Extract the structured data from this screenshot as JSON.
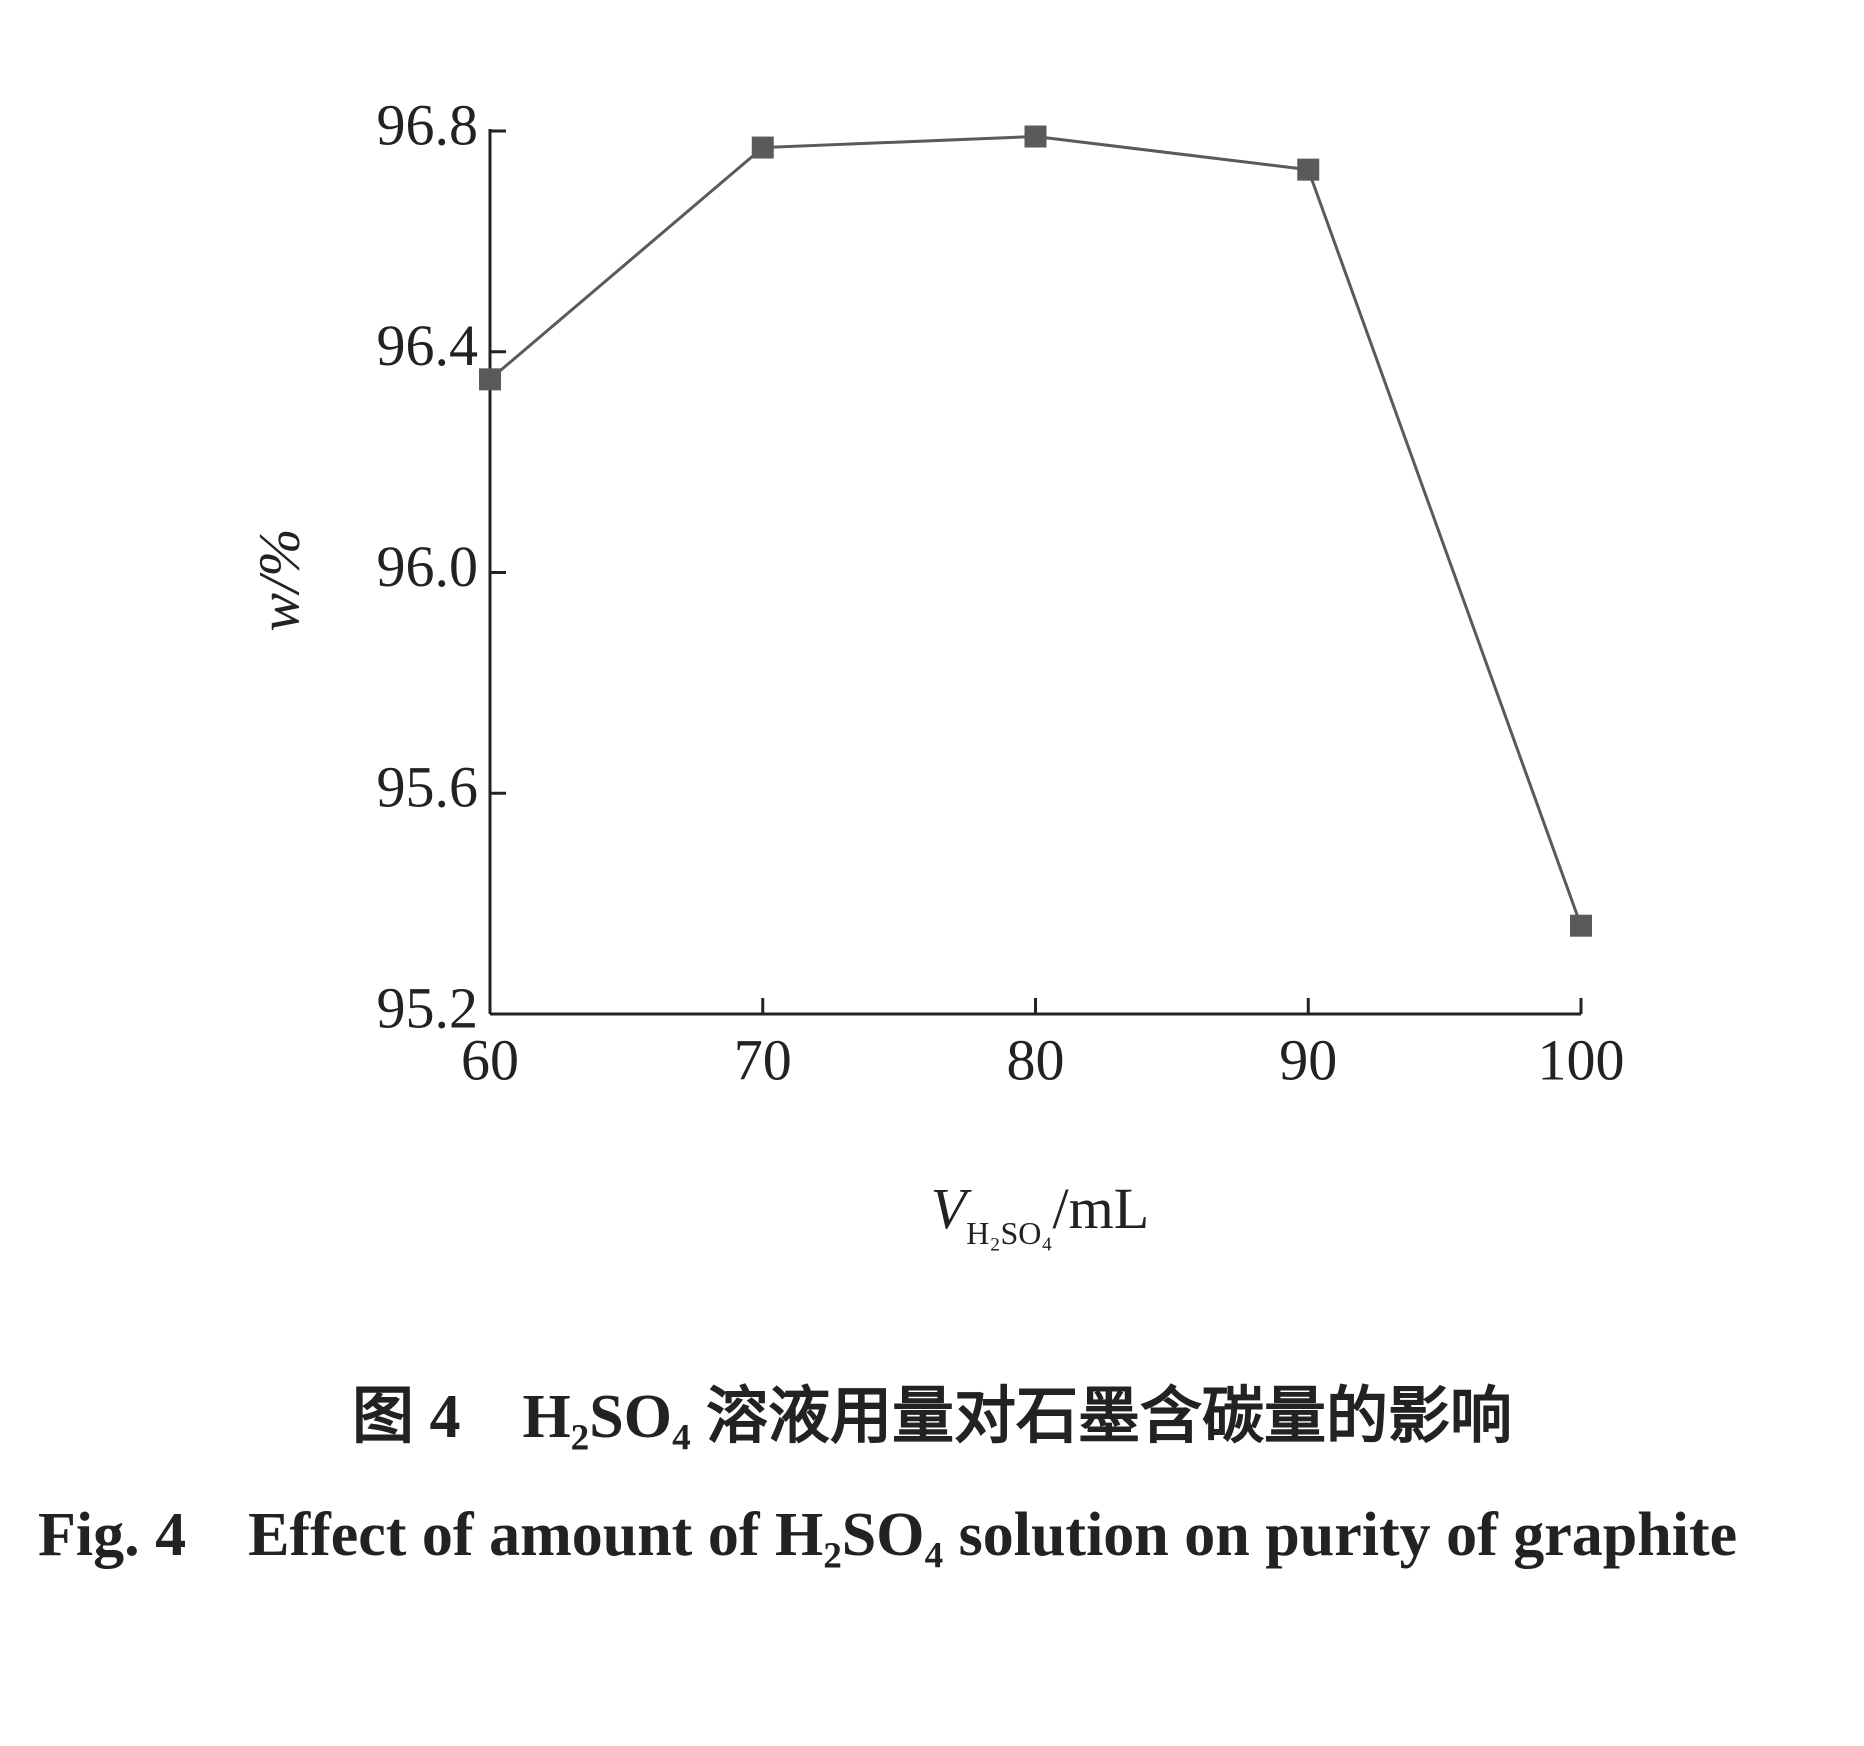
{
  "chart_data": {
    "type": "line",
    "ylabel": "w/%",
    "xlabel_var": "V",
    "xlabel_sub": "H₂SO₄",
    "xlabel_unit": "/mL",
    "x": [
      60,
      70,
      80,
      90,
      100
    ],
    "series": [
      {
        "color": "#5a5a5a",
        "values": [
          96.35,
          96.77,
          96.79,
          96.73,
          95.36
        ]
      }
    ],
    "xlim": [
      60,
      100
    ],
    "xticks": [
      60,
      70,
      80,
      90,
      100
    ],
    "ylim": [
      95.2,
      96.8
    ],
    "yticks": [
      95.2,
      95.6,
      {
        "value": 96,
        "label": "96.0"
      },
      96.4,
      96.8
    ],
    "grid": false
  },
  "caption_cn": "图 4　H₂SO₄ 溶液用量对石墨含碳量的影响",
  "caption_en": "Fig. 4　Effect of amount of H₂SO₄ solution on purity of graphite"
}
